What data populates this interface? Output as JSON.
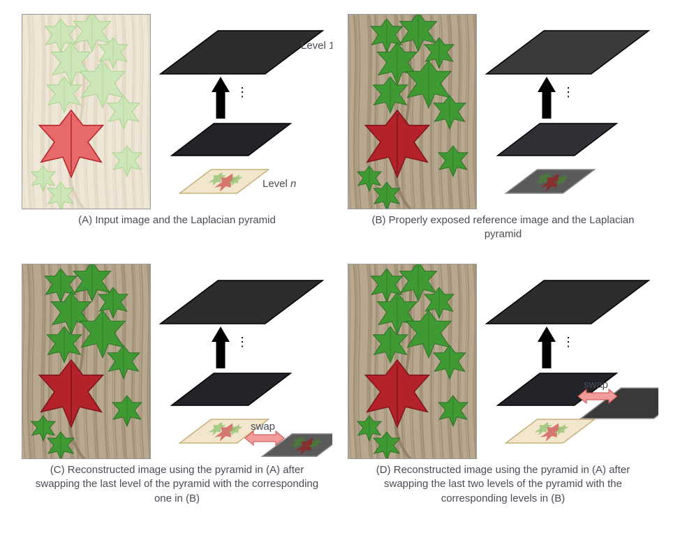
{
  "panels": {
    "A": {
      "caption": "(A) Input image and the Laplacian pyramid",
      "photo_variant": "overexposed",
      "labels": {
        "top": "Level 1",
        "bottom": "Level n"
      },
      "pyramid": {
        "layers": [
          {
            "fill": "#2c2c2c",
            "border": "#000000"
          },
          {
            "fill": "#23232a",
            "border": "#000000"
          },
          {
            "fill": "#f2e6cc",
            "border": "#c6b07a"
          }
        ],
        "swap": null,
        "swap_layer": null
      }
    },
    "B": {
      "caption": "(B) Properly exposed reference image and the Laplacian pyramid",
      "photo_variant": "normal",
      "labels": {},
      "pyramid": {
        "layers": [
          {
            "fill": "#3a3a3a",
            "border": "#000000"
          },
          {
            "fill": "#303037",
            "border": "#000000"
          },
          {
            "fill": "#5a5a5a",
            "border": "#8a8a8a"
          }
        ],
        "swap": null,
        "swap_layer": null
      }
    },
    "C": {
      "caption": "(C) Reconstructed image using the pyramid in (A) after swapping the last level of the pyramid with the corresponding one in (B)",
      "photo_variant": "reconstructed",
      "labels": {},
      "pyramid": {
        "layers": [
          {
            "fill": "#2c2c2c",
            "border": "#000000"
          },
          {
            "fill": "#23232a",
            "border": "#000000"
          },
          {
            "fill": "#f2e6cc",
            "border": "#c6b07a"
          }
        ],
        "swap": {
          "label": "swap",
          "arrow_color": "#f29b9b",
          "arrow_border": "#c94d4d"
        },
        "swap_layer": {
          "fill": "#5a5a5a",
          "border": "#8a8a8a",
          "at_index": 2
        }
      }
    },
    "D": {
      "caption": "(D) Reconstructed image using the pyramid in (A) after swapping the last two levels of the pyramid with the corresponding levels in (B)",
      "photo_variant": "reconstructed",
      "labels": {},
      "pyramid": {
        "layers": [
          {
            "fill": "#2c2c2c",
            "border": "#000000"
          },
          {
            "fill": "#23232a",
            "border": "#000000"
          },
          {
            "fill": "#f2e6cc",
            "border": "#c6b07a"
          }
        ],
        "swap": {
          "label": "swap",
          "arrow_color": "#f29b9b",
          "arrow_border": "#c94d4d"
        },
        "swap_layer": {
          "fill": "#3a3a3a",
          "border": "#8a8a8a",
          "at_index": 1
        }
      }
    }
  },
  "colors": {
    "bark_light": "#d9cbb6",
    "bark_mid": "#b8a88f",
    "bark_dark": "#8a7a60",
    "leaf_green_light": "#a8d48a",
    "leaf_green": "#3f9a33",
    "leaf_green_dark": "#2d6f25",
    "leaf_red": "#b4222a",
    "leaf_red_dark": "#7d151b",
    "overexp_green": "#cde6b9",
    "overexp_red": "#e66a6a",
    "overexp_bark": "#eee6d6"
  }
}
